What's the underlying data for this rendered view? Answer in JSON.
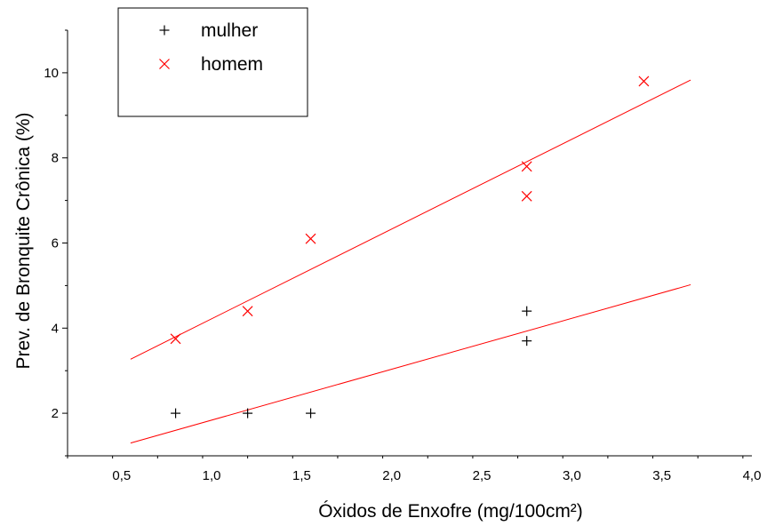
{
  "chart_data": {
    "type": "scatter",
    "xlabel": "Óxidos de Enxofre (mg/100cm²)",
    "ylabel": "Prev. de Bronquite Crônica (%)",
    "xlim": [
      0.2,
      4.0
    ],
    "ylim": [
      1.0,
      11.0
    ],
    "x_ticks": [
      0.5,
      1.0,
      1.5,
      2.0,
      2.5,
      3.0,
      3.5,
      4.0
    ],
    "x_tick_labels": [
      "0,5",
      "1,0",
      "1,5",
      "2,0",
      "2,5",
      "3,0",
      "3,5",
      "4,0"
    ],
    "y_ticks": [
      2,
      4,
      6,
      8,
      10
    ],
    "y_tick_labels": [
      "2",
      "4",
      "6",
      "8",
      "10"
    ],
    "legend_position": "top-left",
    "series": [
      {
        "name": "mulher",
        "marker": "plus",
        "color": "#000000",
        "points": [
          [
            0.8,
            2.0
          ],
          [
            1.2,
            2.0
          ],
          [
            1.55,
            2.0
          ],
          [
            2.75,
            4.4
          ],
          [
            2.75,
            3.7
          ]
        ],
        "fit_line": {
          "color": "#ff0000",
          "x": [
            0.55,
            3.66
          ],
          "y": [
            1.3,
            5.02
          ]
        }
      },
      {
        "name": "homem",
        "marker": "x",
        "color": "#ff0000",
        "points": [
          [
            0.8,
            3.75
          ],
          [
            1.2,
            4.4
          ],
          [
            1.55,
            6.1
          ],
          [
            2.75,
            7.8
          ],
          [
            2.75,
            7.1
          ],
          [
            3.4,
            9.8
          ]
        ],
        "fit_line": {
          "color": "#ff0000",
          "x": [
            0.55,
            3.66
          ],
          "y": [
            3.27,
            9.83
          ]
        }
      }
    ]
  }
}
